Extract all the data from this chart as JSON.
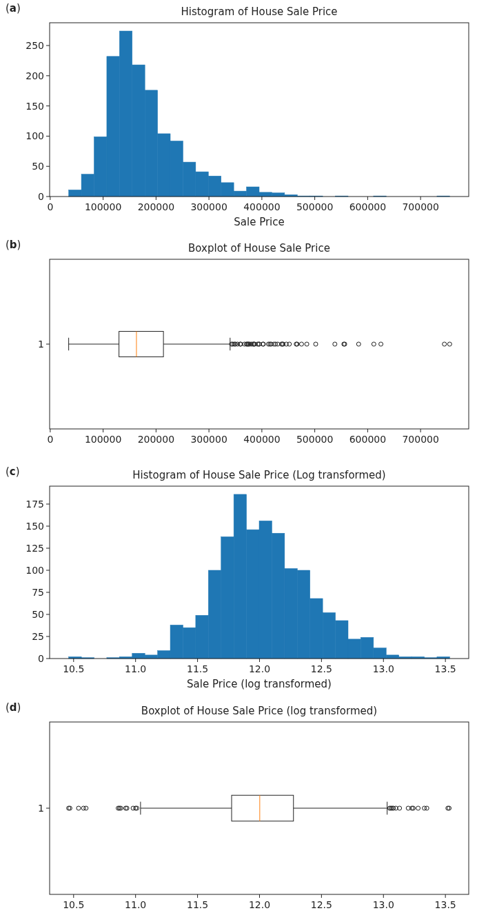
{
  "chart_data": [
    {
      "type": "histogram",
      "title": "Histogram of House Sale Price",
      "xlabel": "Sale Price",
      "annotations": [
        "(a)"
      ],
      "color": "#1f77b4",
      "bins": [
        34900,
        58903,
        82907,
        106910,
        130913,
        154917,
        178920,
        202923,
        226927,
        250930,
        274933,
        298937,
        322940,
        346943,
        370947,
        394950,
        418953,
        442957,
        466960,
        490963,
        514967,
        538970,
        562973,
        586977,
        610980,
        634983,
        658987,
        682990,
        706993,
        730997,
        755000
      ],
      "values": [
        11,
        37,
        99,
        232,
        274,
        218,
        176,
        104,
        92,
        57,
        41,
        34,
        23,
        9,
        16,
        7,
        6,
        3,
        1,
        1,
        0,
        1,
        0,
        0,
        1,
        0,
        0,
        0,
        0,
        1
      ],
      "xlim": [
        -1105,
        791005
      ],
      "xticks": [
        0,
        100000,
        200000,
        300000,
        400000,
        500000,
        600000,
        700000
      ],
      "ylim": [
        0,
        287.7
      ],
      "yticks": [
        0,
        50,
        100,
        150,
        200,
        250
      ]
    },
    {
      "type": "box",
      "title": "Boxplot of House Sale Price",
      "annotations": [
        "(b)"
      ],
      "orientation": "horizontal",
      "categories": [
        "1"
      ],
      "boxes": [
        {
          "low": 34900,
          "q1": 129975,
          "median": 163000,
          "q3": 214000,
          "high": 340000,
          "outliers": [
            342643,
            345000,
            348000,
            350000,
            354000,
            359100,
            360000,
            367294,
            370878,
            372402,
            374000,
            375000,
            377426,
            381000,
            383970,
            385000,
            386250,
            392000,
            394432,
            395000,
            402000,
            402861,
            412500,
            415298,
            417500,
            423000,
            426000,
            430000,
            437154,
            438780,
            440000,
            446261,
            451950,
            465000,
            466500,
            475000,
            485000,
            501837,
            538000,
            555000,
            556581,
            582933,
            611657,
            625000,
            745000,
            755000
          ]
        }
      ],
      "xlim": [
        -1105,
        791005
      ],
      "xticks": [
        0,
        100000,
        200000,
        300000,
        400000,
        500000,
        600000,
        700000
      ]
    },
    {
      "type": "histogram",
      "title": "Histogram of House Sale Price (Log transformed)",
      "xlabel": "Sale Price (log transformed)",
      "annotations": [
        "(c)"
      ],
      "color": "#1f77b4",
      "bins": [
        10.4602,
        10.5627,
        10.6652,
        10.7677,
        10.8701,
        10.9726,
        11.0751,
        11.1776,
        11.2801,
        11.3825,
        11.485,
        11.5875,
        11.69,
        11.7925,
        11.8949,
        11.9974,
        12.0999,
        12.2024,
        12.3049,
        12.4073,
        12.5098,
        12.6123,
        12.7148,
        12.8173,
        12.9197,
        13.0222,
        13.1247,
        13.2272,
        13.3297,
        13.4321,
        13.5346
      ],
      "values": [
        2,
        1,
        0,
        1,
        2,
        6,
        4,
        9,
        38,
        35,
        49,
        100,
        138,
        186,
        146,
        156,
        142,
        102,
        100,
        68,
        52,
        43,
        22,
        24,
        12,
        4,
        2,
        2,
        1,
        2
      ],
      "xlim": [
        10.3065,
        13.6882
      ],
      "xticks": [
        {
          "value": 10.5,
          "label": "10.5"
        },
        {
          "value": 11,
          "label": "11.0"
        },
        {
          "value": 11.5,
          "label": "11.5"
        },
        {
          "value": 12,
          "label": "12.0"
        },
        {
          "value": 12.5,
          "label": "12.5"
        },
        {
          "value": 13,
          "label": "13.0"
        },
        {
          "value": 13.5,
          "label": "13.5"
        }
      ],
      "ylim": [
        0,
        195.3
      ],
      "yticks": [
        0,
        25,
        50,
        75,
        100,
        125,
        150,
        175
      ]
    },
    {
      "type": "box",
      "title": "Boxplot of House Sale Price (log transformed)",
      "annotations": [
        "(d)"
      ],
      "orientation": "horizontal",
      "categories": [
        "1"
      ],
      "boxes": [
        {
          "low": 11.04,
          "q1": 11.775,
          "median": 12.002,
          "q3": 12.274,
          "high": 13.03,
          "outliers": [
            10.46,
            10.47,
            10.54,
            10.58,
            10.6,
            10.86,
            10.87,
            10.88,
            10.92,
            10.93,
            10.98,
            11.0,
            11.01,
            13.05,
            13.06,
            13.07,
            13.08,
            13.1,
            13.13,
            13.2,
            13.23,
            13.24,
            13.28,
            13.33,
            13.35,
            13.52,
            13.53
          ]
        }
      ],
      "xlim": [
        10.3065,
        13.6882
      ],
      "xticks": [
        {
          "value": 10.5,
          "label": "10.5"
        },
        {
          "value": 11,
          "label": "11.0"
        },
        {
          "value": 11.5,
          "label": "11.5"
        },
        {
          "value": 12,
          "label": "12.0"
        },
        {
          "value": 12.5,
          "label": "12.5"
        },
        {
          "value": 13,
          "label": "13.0"
        },
        {
          "value": 13.5,
          "label": "13.5"
        }
      ]
    }
  ]
}
